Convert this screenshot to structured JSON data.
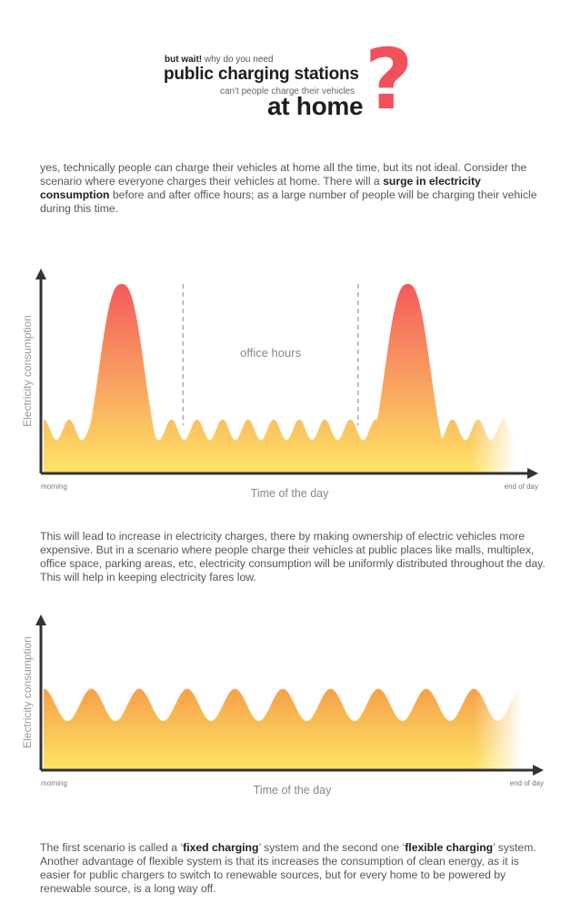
{
  "header": {
    "line1_bold": "but wait!",
    "line1_rest": " why do you need",
    "line2": "public charging stations",
    "line3": "can't people charge their vehicles",
    "line4": "at home",
    "qmark": "?",
    "accent_color": "#f2505a"
  },
  "paragraphs": {
    "p1": {
      "a": "yes, technically people can charge their vehicles at home all the time, but its not ideal. Consider the scenario where everyone charges their vehicles at home. There will a ",
      "b": "surge in electricity consumption",
      "c": " before and after office hours; as a large number of people will be charging their vehicle during this time."
    },
    "p2": {
      "text": "This will lead to increase in electricity charges, there by making ownership of electric vehicles more expensive. But in a scenario where people charge their vehicles at public places like malls, multiplex, office space, parking areas, etc, electricity consumption will be uniformly distributed throughout the day. This will help in keeping electricity fares low."
    },
    "p3": {
      "a": "The first scenario is called a ‘",
      "b": "fixed charging",
      "c": "’ system and the second one ‘",
      "d": "flexible charging",
      "e": "’ system. Another advantage of flexible system is that its increases the consumption of clean energy, as it is easier for public chargers to switch to renewable sources, but for every home to be powered by renewable source, is a long way off."
    }
  },
  "chart_data": [
    {
      "type": "area",
      "title": "",
      "ylabel": "Electricity consumption",
      "xlabel": "Time of the day",
      "x_start_label": "morning",
      "x_end_label": "end of day",
      "annotation": "office hours",
      "peaks": [
        0.165,
        0.77
      ],
      "office_hours": [
        0.295,
        0.665
      ],
      "base_level": 0.23,
      "peak_level": 1.0,
      "gradient": [
        "#f45a5c",
        "#fde564"
      ]
    },
    {
      "type": "area",
      "title": "",
      "ylabel": "Electricity consumption",
      "xlabel": "Time of the day",
      "x_start_label": "morning",
      "x_end_label": "end of day",
      "waves": 10,
      "base_level": 0.35,
      "peak_level": 0.58,
      "gradient": [
        "#f7a04a",
        "#fde564"
      ]
    }
  ]
}
